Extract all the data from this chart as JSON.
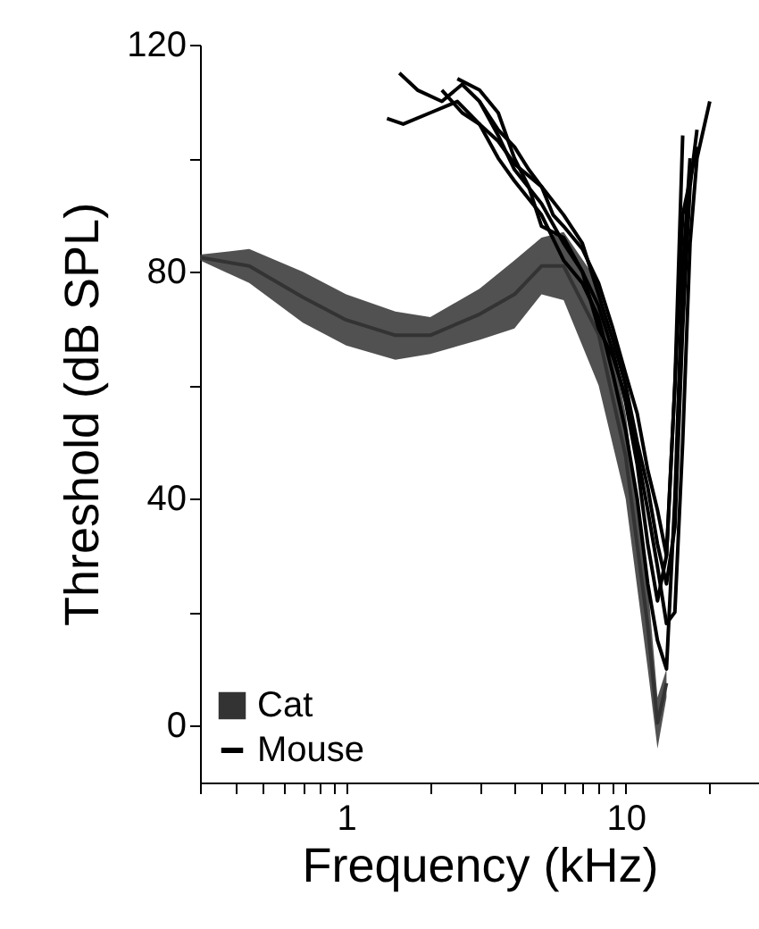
{
  "chart_data": {
    "type": "line",
    "xlabel": "Frequency (kHz)",
    "ylabel": "Threshold (dB SPL)",
    "log": "x",
    "xlim": [
      0.3,
      30
    ],
    "xticks": [
      {
        "value": 0.3,
        "label": null
      },
      {
        "value": 0.4,
        "label": null
      },
      {
        "value": 0.5,
        "label": null
      },
      {
        "value": 0.6,
        "label": null
      },
      {
        "value": 0.7,
        "label": null
      },
      {
        "value": 0.8,
        "label": null
      },
      {
        "value": 0.9,
        "label": null
      },
      1,
      {
        "value": 2,
        "label": null
      },
      {
        "value": 3,
        "label": null
      },
      {
        "value": 4,
        "label": null
      },
      {
        "value": 5,
        "label": null
      },
      {
        "value": 6,
        "label": null
      },
      {
        "value": 7,
        "label": null
      },
      {
        "value": 8,
        "label": null
      },
      {
        "value": 9,
        "label": null
      },
      10,
      {
        "value": 20,
        "label": null
      },
      {
        "value": 30,
        "label": null
      }
    ],
    "ylim": [
      -10,
      120
    ],
    "yticks": [
      0,
      {
        "value": 20,
        "label": null
      },
      40,
      {
        "value": 60,
        "label": null
      },
      80,
      {
        "value": 100,
        "label": null
      },
      120
    ],
    "legend": "bottom left",
    "grid": false,
    "series": [
      {
        "name": "Cat",
        "type": "line",
        "color": "#333333",
        "x": [
          0.3,
          0.45,
          0.7,
          1.0,
          1.5,
          2.0,
          3.0,
          4.0,
          5.0,
          6.0,
          8.0,
          10,
          12,
          13,
          14
        ],
        "lower": [
          82,
          78,
          71,
          67,
          64.5,
          65.5,
          68,
          70,
          76,
          75,
          60,
          40,
          10,
          -4,
          5
        ],
        "upper": [
          83,
          84,
          80,
          76,
          73,
          72,
          77,
          82,
          86,
          87,
          78,
          55,
          25,
          5,
          10
        ],
        "values": [
          82.5,
          81,
          75.5,
          71.5,
          68.8,
          68.8,
          72.5,
          76,
          81,
          81,
          69,
          47.5,
          17.5,
          0.5,
          7.5
        ]
      },
      {
        "name": "Mouse",
        "color": "#000000",
        "x": [
          1.4,
          1.6,
          2.0,
          2.5,
          3.0,
          3.5,
          4.0,
          5.0,
          6.0,
          7.0,
          8.0,
          9.0,
          10,
          11,
          12,
          13,
          14,
          15,
          16,
          17
        ],
        "values": [
          107,
          106,
          108,
          110,
          106,
          100,
          96,
          90,
          82,
          78,
          72,
          62,
          52,
          40,
          25,
          15,
          10,
          40,
          80,
          100
        ]
      },
      {
        "color": "#000000",
        "x": [
          1.55,
          1.8,
          2.2,
          2.6,
          3.0,
          3.5,
          4.0,
          5,
          6,
          7,
          8,
          9,
          10,
          11,
          12,
          13,
          14,
          15,
          16,
          18
        ],
        "values": [
          115,
          112,
          110,
          113,
          110,
          104,
          98,
          92,
          85,
          80,
          74,
          66,
          57,
          46,
          32,
          22,
          30,
          60,
          90,
          102
        ]
      },
      {
        "color": "#000000",
        "x": [
          2.5,
          3,
          3.5,
          4,
          4.5,
          5,
          6,
          7,
          8,
          9,
          10,
          11,
          12,
          13,
          14,
          15,
          16,
          17,
          18,
          20
        ],
        "values": [
          114,
          112,
          108,
          100,
          95,
          88,
          86,
          80,
          70,
          65,
          58,
          48,
          38,
          28,
          18,
          20,
          50,
          85,
          100,
          110
        ]
      },
      {
        "color": "#000000",
        "x": [
          3,
          3.5,
          4,
          4.5,
          5,
          5.5,
          6,
          7,
          8,
          9,
          10,
          11,
          12,
          13,
          14,
          15,
          16
        ],
        "values": [
          110,
          105,
          102,
          98,
          95,
          90,
          88,
          84,
          78,
          70,
          62,
          55,
          45,
          38,
          30,
          60,
          104
        ]
      },
      {
        "color": "#000000",
        "x": [
          2.2,
          2.6,
          3,
          3.5,
          4,
          5,
          6,
          7,
          8,
          9,
          10,
          11,
          12,
          13,
          14,
          15,
          16,
          17,
          18
        ],
        "values": [
          112,
          108,
          106,
          103,
          99,
          95,
          90,
          85,
          76,
          68,
          60,
          50,
          42,
          32,
          25,
          35,
          70,
          95,
          105
        ]
      }
    ]
  }
}
